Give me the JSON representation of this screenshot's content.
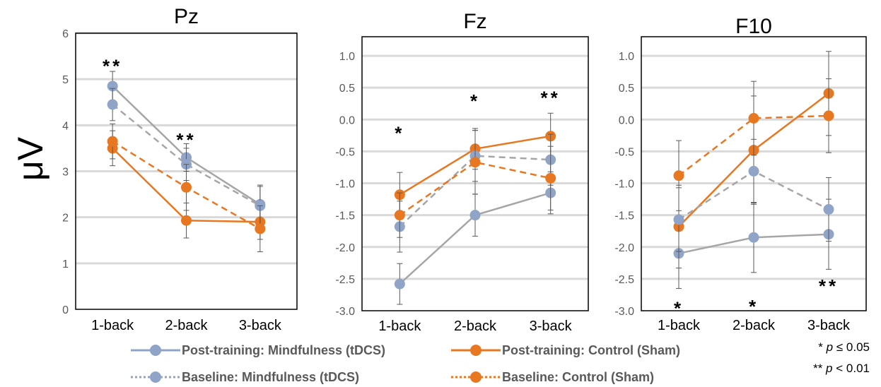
{
  "colors": {
    "mindfulness": "#8FA4C7",
    "control": "#E87722",
    "post_mind_line": "#A6A6A6",
    "base_mind_line": "#A6A6A6",
    "grid": "#D9D9D9",
    "errorbar": "#595959"
  },
  "y_axis_label": "μV",
  "legend": [
    {
      "label": "Post-training: Mindfulness (tDCS)",
      "color": "#8FA4C7",
      "dashed": false
    },
    {
      "label": "Post-training: Control (Sham)",
      "color": "#E87722",
      "dashed": false
    },
    {
      "label": "Baseline: Mindfulness (tDCS)",
      "color": "#8FA4C7",
      "dashed": true
    },
    {
      "label": "Baseline: Control (Sham)",
      "color": "#E87722",
      "dashed": true
    }
  ],
  "significance_note": {
    "line1": {
      "stars": "*",
      "p": "p",
      "rel": "≤ 0.05"
    },
    "line2": {
      "stars": "**",
      "p": "p",
      "rel": "< 0.01"
    }
  },
  "chart_data": [
    {
      "type": "line",
      "title": "Pz",
      "categories": [
        "1-back",
        "2-back",
        "3-back"
      ],
      "ylim": [
        0,
        6
      ],
      "yticks": [
        "0",
        "1",
        "2",
        "3",
        "4",
        "5",
        "6"
      ],
      "grid": true,
      "significance": [
        {
          "category": "1-back",
          "label": "**",
          "at": 5.3
        },
        {
          "category": "2-back",
          "label": "**",
          "at": 3.7
        }
      ],
      "series": [
        {
          "name": "Post-training: Mindfulness (tDCS)",
          "values": [
            4.85,
            3.3,
            2.28
          ],
          "err": [
            0.32,
            0.3,
            0.42
          ]
        },
        {
          "name": "Post-training: Control (Sham)",
          "values": [
            3.5,
            1.93,
            1.9
          ],
          "err": [
            0.38,
            0.38,
            0.38
          ]
        },
        {
          "name": "Baseline: Mindfulness (tDCS)",
          "values": [
            4.45,
            3.15,
            2.25
          ],
          "err": [
            0.35,
            0.35,
            0.42
          ]
        },
        {
          "name": "Baseline: Control (Sham)",
          "values": [
            3.65,
            2.65,
            1.75
          ],
          "err": [
            0.38,
            0.5,
            0.5
          ]
        }
      ]
    },
    {
      "type": "line",
      "title": "Fz",
      "categories": [
        "1-back",
        "2-back",
        "3-back"
      ],
      "ylim": [
        -3,
        1.3
      ],
      "yticks": [
        "-3.0",
        "-2.5",
        "-2.0",
        "-1.5",
        "-1.0",
        "-0.5",
        "0.0",
        "0.5",
        "1.0"
      ],
      "grid": true,
      "significance": [
        {
          "category": "1-back",
          "label": "*",
          "at": -0.2
        },
        {
          "category": "2-back",
          "label": "*",
          "at": 0.3
        },
        {
          "category": "3-back",
          "label": "**",
          "at": 0.35
        }
      ],
      "series": [
        {
          "name": "Post-training: Mindfulness (tDCS)",
          "values": [
            -2.58,
            -1.5,
            -1.15
          ],
          "err": [
            0.32,
            0.33,
            0.33
          ]
        },
        {
          "name": "Post-training: Control (Sham)",
          "values": [
            -1.18,
            -0.46,
            -0.26
          ],
          "err": [
            0.35,
            0.32,
            0.36
          ]
        },
        {
          "name": "Baseline: Mindfulness (tDCS)",
          "values": [
            -1.68,
            -0.57,
            -0.63
          ],
          "err": [
            0.4,
            0.4,
            0.4
          ]
        },
        {
          "name": "Baseline: Control (Sham)",
          "values": [
            -1.5,
            -0.67,
            -0.92
          ],
          "err": [
            0.35,
            0.5,
            0.5
          ]
        }
      ]
    },
    {
      "type": "line",
      "title": "F10",
      "categories": [
        "1-back",
        "2-back",
        "3-back"
      ],
      "ylim": [
        -3,
        1.3
      ],
      "yticks": [
        "-3.0",
        "-2.5",
        "-2.0",
        "-1.5",
        "-1.0",
        "-0.5",
        "0.0",
        "0.5",
        "1.0"
      ],
      "grid": true,
      "significance": [
        {
          "category": "1-back",
          "label": "*",
          "at": -2.95
        },
        {
          "category": "2-back",
          "label": "*",
          "at": -2.92
        },
        {
          "category": "3-back",
          "label": "**",
          "at": -2.6
        }
      ],
      "series": [
        {
          "name": "Post-training: Mindfulness (tDCS)",
          "values": [
            -2.1,
            -1.85,
            -1.8
          ],
          "err": [
            0.55,
            0.55,
            0.55
          ]
        },
        {
          "name": "Post-training: Control (Sham)",
          "values": [
            -1.68,
            -0.48,
            0.41
          ],
          "err": [
            0.65,
            0.85,
            0.66
          ]
        },
        {
          "name": "Baseline: Mindfulness (tDCS)",
          "values": [
            -1.57,
            -0.81,
            -1.41
          ],
          "err": [
            0.5,
            0.5,
            0.5
          ]
        },
        {
          "name": "Baseline: Control (Sham)",
          "values": [
            -0.88,
            0.02,
            0.06
          ],
          "err": [
            0.55,
            0.58,
            0.58
          ]
        }
      ]
    }
  ]
}
